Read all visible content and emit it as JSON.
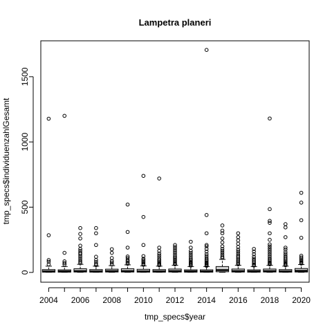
{
  "chart_data": {
    "type": "boxplot",
    "title": "Lampetra planeri",
    "xlabel": "tmp_specs$year",
    "ylabel": "tmp_specs$individuenzahlGesamt",
    "ylim": [
      -75,
      1775
    ],
    "yticks": [
      0,
      500,
      1000,
      1500
    ],
    "xtick_labels": [
      "2004",
      "2006",
      "2008",
      "2010",
      "2012",
      "2014",
      "2016",
      "2018",
      "2020"
    ],
    "categories": [
      "2004",
      "2005",
      "2006",
      "2007",
      "2008",
      "2009",
      "2010",
      "2011",
      "2012",
      "2013",
      "2014",
      "2015",
      "2016",
      "2017",
      "2018",
      "2019",
      "2020"
    ],
    "grid": false,
    "legend": "none",
    "boxes": [
      {
        "year": "2004",
        "q1": 2,
        "median": 8,
        "q3": 22,
        "whisker_low": 1,
        "whisker_high": 48,
        "outliers": [
          62,
          82,
          95,
          285,
          1178
        ]
      },
      {
        "year": "2005",
        "q1": 2,
        "median": 8,
        "q3": 20,
        "whisker_low": 1,
        "whisker_high": 45,
        "outliers": [
          60,
          72,
          85,
          150,
          1200
        ]
      },
      {
        "year": "2006",
        "q1": 3,
        "median": 10,
        "q3": 28,
        "whisker_low": 1,
        "whisker_high": 62,
        "outliers": [
          70,
          82,
          95,
          110,
          125,
          140,
          150,
          165,
          180,
          205,
          260,
          295,
          340
        ]
      },
      {
        "year": "2007",
        "q1": 2,
        "median": 8,
        "q3": 22,
        "whisker_low": 1,
        "whisker_high": 48,
        "outliers": [
          55,
          65,
          80,
          95,
          120,
          210,
          300,
          340
        ]
      },
      {
        "year": "2008",
        "q1": 3,
        "median": 10,
        "q3": 25,
        "whisker_low": 1,
        "whisker_high": 52,
        "outliers": [
          60,
          75,
          88,
          110,
          150,
          178
        ]
      },
      {
        "year": "2009",
        "q1": 3,
        "median": 10,
        "q3": 28,
        "whisker_low": 1,
        "whisker_high": 58,
        "outliers": [
          66,
          75,
          85,
          95,
          110,
          122,
          190,
          310,
          520
        ]
      },
      {
        "year": "2010",
        "q1": 2,
        "median": 8,
        "q3": 24,
        "whisker_low": 1,
        "whisker_high": 50,
        "outliers": [
          58,
          65,
          75,
          85,
          95,
          105,
          125,
          210,
          425,
          740
        ]
      },
      {
        "year": "2011",
        "q1": 2,
        "median": 8,
        "q3": 22,
        "whisker_low": 1,
        "whisker_high": 48,
        "outliers": [
          55,
          62,
          70,
          80,
          90,
          100,
          115,
          130,
          145,
          165,
          190,
          720
        ]
      },
      {
        "year": "2012",
        "q1": 3,
        "median": 10,
        "q3": 26,
        "whisker_low": 1,
        "whisker_high": 55,
        "outliers": [
          62,
          70,
          80,
          90,
          100,
          110,
          120,
          135,
          150,
          165,
          180,
          195,
          210
        ]
      },
      {
        "year": "2013",
        "q1": 2,
        "median": 8,
        "q3": 20,
        "whisker_low": 1,
        "whisker_high": 45,
        "outliers": [
          52,
          60,
          68,
          76,
          85,
          95,
          105,
          120,
          135,
          150,
          165,
          190,
          235
        ]
      },
      {
        "year": "2014",
        "q1": 2,
        "median": 7,
        "q3": 20,
        "whisker_low": 1,
        "whisker_high": 45,
        "outliers": [
          50,
          55,
          62,
          70,
          78,
          88,
          98,
          110,
          125,
          140,
          160,
          180,
          200,
          210,
          300,
          440,
          1705
        ]
      },
      {
        "year": "2015",
        "q1": 5,
        "median": 18,
        "q3": 45,
        "whisker_low": 1,
        "whisker_high": 100,
        "outliers": [
          110,
          120,
          135,
          150,
          165,
          180,
          200,
          230,
          260,
          300,
          320,
          360
        ]
      },
      {
        "year": "2016",
        "q1": 3,
        "median": 10,
        "q3": 26,
        "whisker_low": 1,
        "whisker_high": 55,
        "outliers": [
          62,
          72,
          82,
          92,
          105,
          118,
          130,
          145,
          160,
          175,
          195,
          220,
          245,
          270,
          300
        ]
      },
      {
        "year": "2017",
        "q1": 2,
        "median": 8,
        "q3": 20,
        "whisker_low": 1,
        "whisker_high": 45,
        "outliers": [
          52,
          60,
          70,
          80,
          92,
          105,
          120,
          140,
          160,
          180
        ]
      },
      {
        "year": "2018",
        "q1": 3,
        "median": 10,
        "q3": 26,
        "whisker_low": 1,
        "whisker_high": 55,
        "outliers": [
          62,
          70,
          78,
          88,
          98,
          110,
          125,
          140,
          155,
          170,
          185,
          200,
          215,
          250,
          300,
          380,
          395,
          485,
          1180
        ]
      },
      {
        "year": "2019",
        "q1": 2,
        "median": 8,
        "q3": 22,
        "whisker_low": 1,
        "whisker_high": 48,
        "outliers": [
          55,
          62,
          70,
          80,
          90,
          100,
          112,
          125,
          140,
          155,
          175,
          190,
          270,
          345,
          370
        ]
      },
      {
        "year": "2020",
        "q1": 3,
        "median": 12,
        "q3": 30,
        "whisker_low": 1,
        "whisker_high": 60,
        "outliers": [
          68,
          76,
          85,
          95,
          105,
          115,
          128,
          265,
          400,
          535,
          610
        ]
      }
    ]
  }
}
